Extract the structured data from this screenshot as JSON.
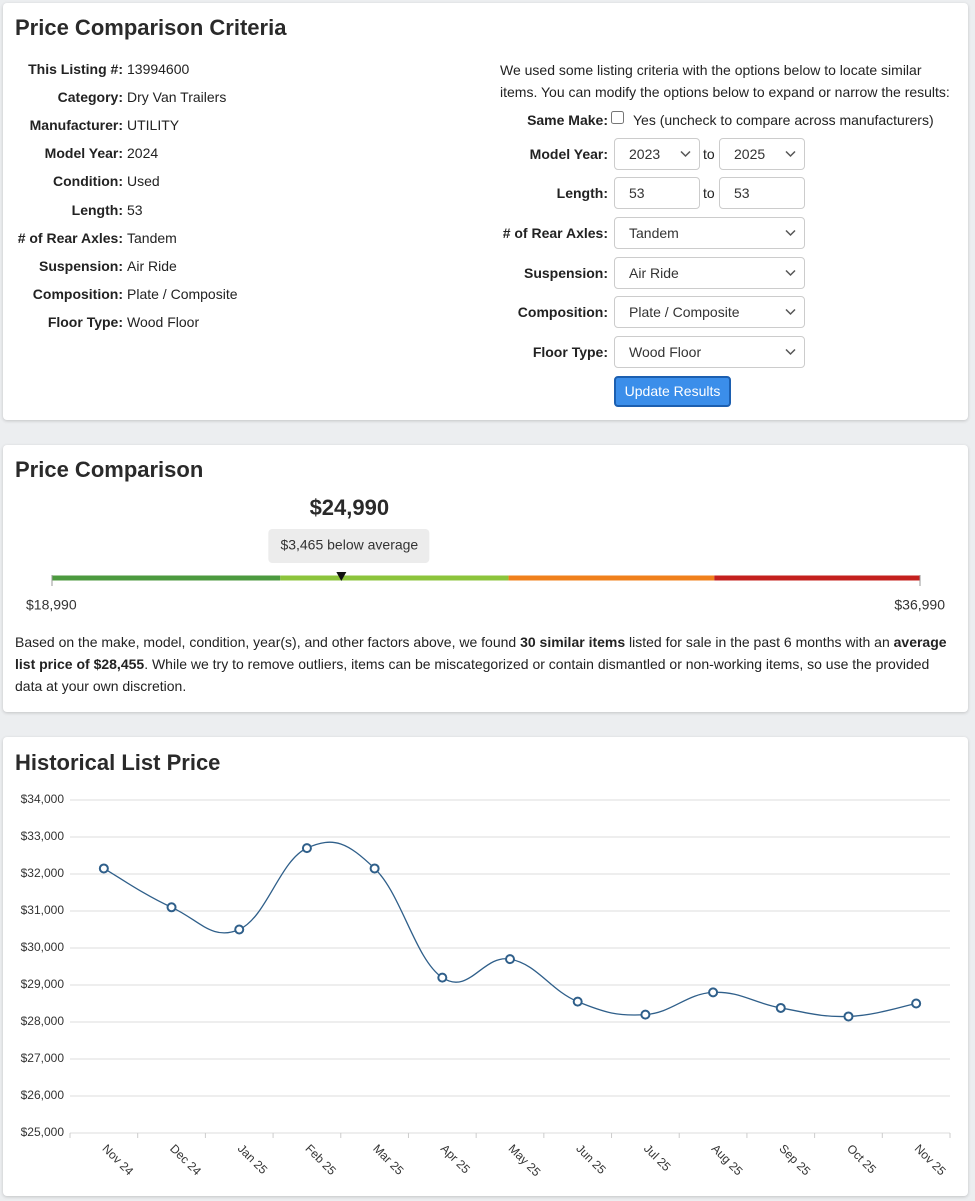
{
  "criteria": {
    "title": "Price Comparison Criteria",
    "listing": [
      {
        "label": "This Listing #:",
        "value": "13994600"
      },
      {
        "label": "Category:",
        "value": "Dry Van Trailers"
      },
      {
        "label": "Manufacturer:",
        "value": "UTILITY"
      },
      {
        "label": "Model Year:",
        "value": "2024"
      },
      {
        "label": "Condition:",
        "value": "Used"
      },
      {
        "label": "Length:",
        "value": "53"
      },
      {
        "label": "# of Rear Axles:",
        "value": "Tandem"
      },
      {
        "label": "Suspension:",
        "value": "Air Ride"
      },
      {
        "label": "Composition:",
        "value": "Plate / Composite"
      },
      {
        "label": "Floor Type:",
        "value": "Wood Floor"
      }
    ],
    "intro": "We used some listing criteria with the options below to locate similar items. You can modify the options below to expand or narrow the results:",
    "same_make": {
      "label": "Same Make:",
      "text": "Yes (uncheck to compare across manufacturers)",
      "checked": false
    },
    "model_year": {
      "label": "Model Year:",
      "from": "2023",
      "separator": "to",
      "to": "2025"
    },
    "length": {
      "label": "Length:",
      "from": "53",
      "separator": "to",
      "to": "53"
    },
    "selects": [
      {
        "label": "# of Rear Axles:",
        "value": "Tandem"
      },
      {
        "label": "Suspension:",
        "value": "Air Ride"
      },
      {
        "label": "Composition:",
        "value": "Plate / Composite"
      },
      {
        "label": "Floor Type:",
        "value": "Wood Floor"
      }
    ],
    "button": "Update Results"
  },
  "comparison": {
    "title": "Price Comparison",
    "price": {
      "value": 24990,
      "label": "$24,990"
    },
    "badge": "$3,465 below average",
    "min": {
      "value": 18990,
      "label": "$18,990"
    },
    "max": {
      "value": 36990,
      "label": "$36,990"
    },
    "segment_colors": [
      "#4c9a3f",
      "#8cc43c",
      "#f0801c",
      "#c4201e"
    ],
    "paragraph": [
      {
        "text": "Based on the make, model, condition, year(s), and other factors above, we found ",
        "bold": false
      },
      {
        "text": "30 similar items",
        "bold": true
      },
      {
        "text": " listed for sale in the past 6 months with an ",
        "bold": false
      },
      {
        "text": "average list price of $28,455",
        "bold": true
      },
      {
        "text": ". While we try to remove outliers, items can be miscategorized or contain dismantled or non-working items, so use the provided data at your own discretion.",
        "bold": false
      }
    ]
  },
  "chart_data": {
    "type": "line",
    "title": "Historical List Price",
    "categories": [
      "Nov 24",
      "Dec 24",
      "Jan 25",
      "Feb 25",
      "Mar 25",
      "Apr 25",
      "May 25",
      "Jun 25",
      "Jul 25",
      "Aug 25",
      "Sep 25",
      "Oct 25",
      "Nov 25"
    ],
    "values": [
      32150,
      31100,
      30500,
      32700,
      32150,
      29200,
      29700,
      28550,
      28200,
      28800,
      28380,
      28150,
      28500
    ],
    "color": "#2f5f8a",
    "ylim": [
      25000,
      34000
    ],
    "yticks": [
      {
        "value": 25000,
        "label": "$25,000"
      },
      {
        "value": 26000,
        "label": "$26,000"
      },
      {
        "value": 27000,
        "label": "$27,000"
      },
      {
        "value": 28000,
        "label": "$28,000"
      },
      {
        "value": 29000,
        "label": "$29,000"
      },
      {
        "value": 30000,
        "label": "$30,000"
      },
      {
        "value": 31000,
        "label": "$31,000"
      },
      {
        "value": 32000,
        "label": "$32,000"
      },
      {
        "value": 33000,
        "label": "$33,000"
      },
      {
        "value": 34000,
        "label": "$34,000"
      }
    ],
    "grid": true
  }
}
